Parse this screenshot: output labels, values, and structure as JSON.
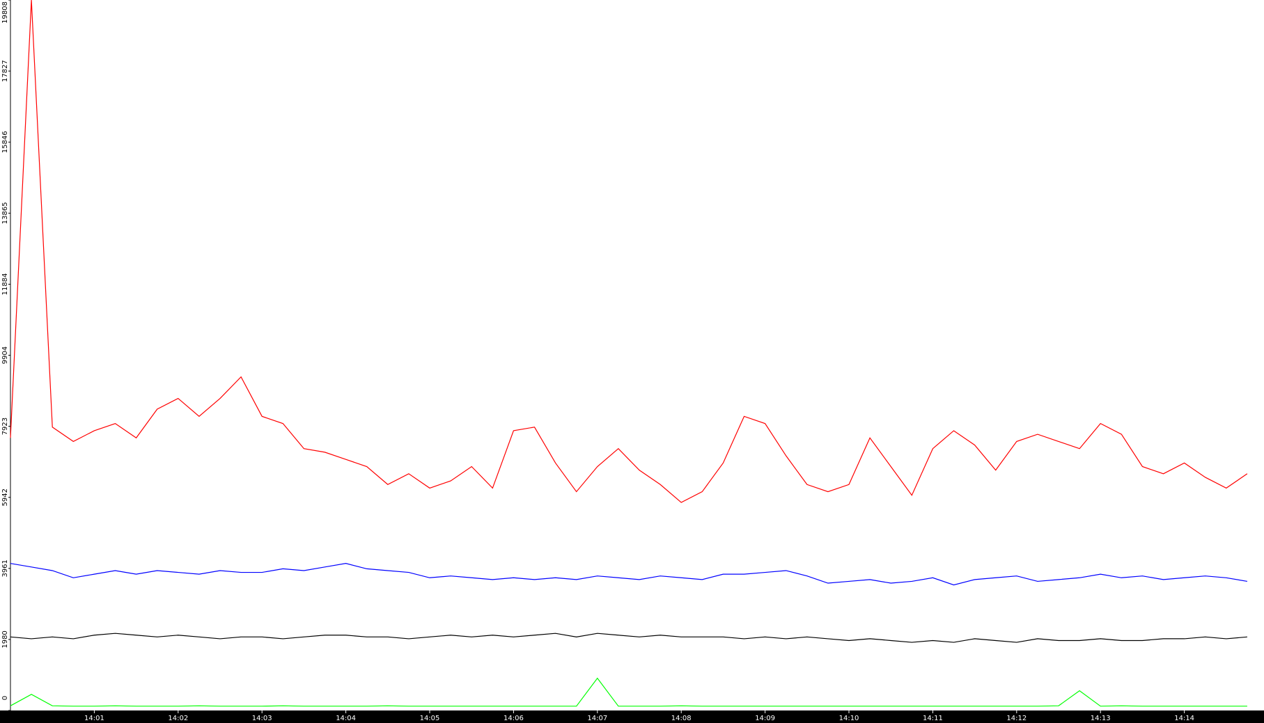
{
  "chart_data": {
    "type": "line",
    "x": [
      0,
      0.25,
      0.5,
      0.75,
      1,
      1.25,
      1.5,
      1.75,
      2,
      2.25,
      2.5,
      2.75,
      3,
      3.25,
      3.5,
      3.75,
      4,
      4.25,
      4.5,
      4.75,
      5,
      5.25,
      5.5,
      5.75,
      6,
      6.25,
      6.5,
      6.75,
      7,
      7.25,
      7.5,
      7.75,
      8,
      8.25,
      8.5,
      8.75,
      9,
      9.25,
      9.5,
      9.75,
      10,
      10.25,
      10.5,
      10.75,
      11,
      11.25,
      11.5,
      11.75,
      12,
      12.25,
      12.5,
      12.75,
      13,
      13.25,
      13.5,
      13.75,
      14,
      14.25,
      14.5,
      14.75
    ],
    "series": [
      {
        "color": "#ff0000",
        "values": [
          7600,
          19808,
          7900,
          7500,
          7800,
          8000,
          7600,
          8400,
          8700,
          8200,
          8700,
          9300,
          8200,
          8000,
          7300,
          7200,
          7000,
          6800,
          6300,
          6600,
          6200,
          6400,
          6800,
          6200,
          7800,
          7900,
          6900,
          6100,
          6800,
          7300,
          6700,
          6300,
          5800,
          6100,
          6900,
          8200,
          8000,
          7100,
          6300,
          6100,
          6300,
          7600,
          6800,
          6000,
          7300,
          7800,
          7400,
          6700,
          7500,
          7700,
          7500,
          7300,
          8000,
          7700,
          6800,
          6600,
          6900,
          6500,
          6200,
          6600
        ]
      },
      {
        "color": "#0000ff",
        "values": [
          4100,
          4000,
          3900,
          3700,
          3800,
          3900,
          3800,
          3900,
          3850,
          3800,
          3900,
          3850,
          3850,
          3950,
          3900,
          4000,
          4100,
          3950,
          3900,
          3850,
          3700,
          3750,
          3700,
          3650,
          3700,
          3650,
          3700,
          3650,
          3750,
          3700,
          3650,
          3750,
          3700,
          3650,
          3800,
          3800,
          3850,
          3900,
          3750,
          3550,
          3600,
          3650,
          3550,
          3600,
          3700,
          3500,
          3650,
          3700,
          3750,
          3600,
          3650,
          3700,
          3800,
          3700,
          3750,
          3650,
          3700,
          3750,
          3700,
          3600
        ]
      },
      {
        "color": "#000000",
        "values": [
          2050,
          2000,
          2050,
          2000,
          2100,
          2150,
          2100,
          2050,
          2100,
          2050,
          2000,
          2050,
          2050,
          2000,
          2050,
          2100,
          2100,
          2050,
          2050,
          2000,
          2050,
          2100,
          2050,
          2100,
          2050,
          2100,
          2150,
          2050,
          2150,
          2100,
          2050,
          2100,
          2050,
          2050,
          2050,
          2000,
          2050,
          2000,
          2050,
          2000,
          1950,
          2000,
          1950,
          1900,
          1950,
          1900,
          2000,
          1950,
          1900,
          2000,
          1950,
          1950,
          2000,
          1950,
          1950,
          2000,
          2000,
          2050,
          2000,
          2050
        ]
      },
      {
        "color": "#00ff00",
        "values": [
          130,
          450,
          130,
          120,
          120,
          130,
          120,
          120,
          120,
          130,
          120,
          120,
          120,
          130,
          120,
          120,
          120,
          120,
          130,
          120,
          120,
          120,
          120,
          120,
          120,
          120,
          120,
          120,
          900,
          120,
          120,
          120,
          130,
          120,
          120,
          120,
          120,
          120,
          120,
          120,
          120,
          120,
          120,
          120,
          120,
          120,
          120,
          120,
          120,
          120,
          130,
          550,
          120,
          130,
          120,
          120,
          120,
          120,
          120,
          120
        ]
      }
    ],
    "xlim": [
      0,
      14.95
    ],
    "xticks": [
      {
        "value": 1,
        "label": "14:01"
      },
      {
        "value": 2,
        "label": "14:02"
      },
      {
        "value": 3,
        "label": "14:03"
      },
      {
        "value": 4,
        "label": "14:04"
      },
      {
        "value": 5,
        "label": "14:05"
      },
      {
        "value": 6,
        "label": "14:06"
      },
      {
        "value": 7,
        "label": "14:07"
      },
      {
        "value": 8,
        "label": "14:08"
      },
      {
        "value": 9,
        "label": "14:09"
      },
      {
        "value": 10,
        "label": "14:10"
      },
      {
        "value": 11,
        "label": "14:11"
      },
      {
        "value": 12,
        "label": "14:12"
      },
      {
        "value": 13,
        "label": "14:13"
      },
      {
        "value": 14,
        "label": "14:14"
      }
    ],
    "ylim": [
      0,
      19808
    ],
    "yticks": [
      0,
      1980,
      3961,
      5942,
      7923,
      9904,
      11884,
      13865,
      15846,
      17827,
      19808
    ]
  }
}
